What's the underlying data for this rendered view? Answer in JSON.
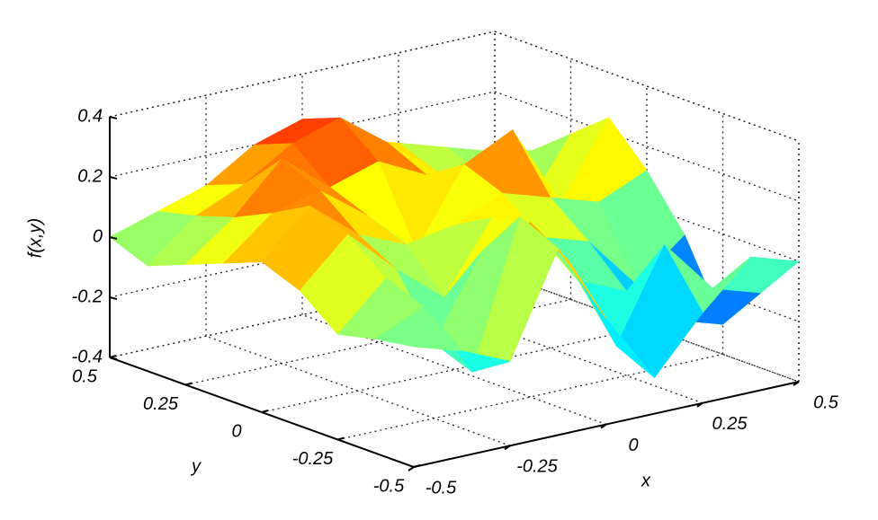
{
  "chart_data": {
    "type": "surface",
    "xlabel": "x",
    "ylabel": "y",
    "zlabel": "f(x,y)",
    "xlim": [
      -0.5,
      0.5
    ],
    "xticks": [
      -0.5,
      -0.25,
      0,
      0.25,
      0.5
    ],
    "ylim": [
      -0.5,
      0.5
    ],
    "yticks": [
      -0.5,
      -0.25,
      0,
      0.25,
      0.5
    ],
    "zlim": [
      -0.4,
      0.4
    ],
    "zticks": [
      -0.4,
      -0.2,
      0,
      0.2,
      0.4
    ],
    "grid": true,
    "colormap": "jet",
    "x": [
      -0.5,
      -0.375,
      -0.25,
      -0.125,
      0,
      0.125,
      0.25,
      0.375,
      0.5
    ],
    "y": [
      -0.5,
      -0.375,
      -0.25,
      -0.125,
      0,
      0.125,
      0.25,
      0.375,
      0.5
    ],
    "z": [
      [
        0.0,
        -0.05,
        -0.12,
        0.22,
        -0.05,
        -0.28,
        -0.1,
        0.05,
        0.0
      ],
      [
        -0.02,
        0.05,
        -0.2,
        0.28,
        0.1,
        -0.22,
        0.08,
        -0.1,
        -0.15
      ],
      [
        -0.05,
        0.1,
        -0.15,
        0.12,
        0.18,
        -0.05,
        -0.12,
        -0.25,
        -0.3
      ],
      [
        0.05,
        0.2,
        0.05,
        -0.08,
        0.15,
        0.05,
        0.0,
        -0.18,
        -0.05
      ],
      [
        0.1,
        0.25,
        0.12,
        0.05,
        0.08,
        0.15,
        0.1,
        0.05,
        0.12
      ],
      [
        0.05,
        0.18,
        0.22,
        0.1,
        -0.05,
        0.2,
        0.28,
        0.0,
        0.25
      ],
      [
        0.0,
        0.12,
        0.28,
        0.15,
        0.2,
        0.12,
        0.1,
        -0.08,
        0.15
      ],
      [
        -0.05,
        0.08,
        0.15,
        0.25,
        0.3,
        0.18,
        0.05,
        0.0,
        0.05
      ],
      [
        0.0,
        0.05,
        0.1,
        0.2,
        0.25,
        0.15,
        0.1,
        0.05,
        0.0
      ]
    ]
  }
}
